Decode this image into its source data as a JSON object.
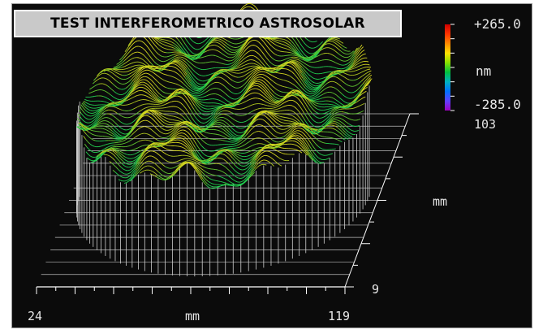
{
  "chart_data": {
    "type": "surface-3d",
    "title": "TEST INTERFEROMETRICO ASTROSOLAR",
    "colorbar": {
      "max_label": "+265.0",
      "min_label": "-285.0",
      "unit": "nm",
      "colors": [
        "#cc0000",
        "#ff3300",
        "#ff8800",
        "#ffe000",
        "#88e000",
        "#00c040",
        "#00b0c0",
        "#0070ff",
        "#6040ff",
        "#a000c0"
      ]
    },
    "x_axis": {
      "min_label": "24",
      "max_label": "119",
      "unit": "mm",
      "range": [
        24,
        119
      ]
    },
    "y_axis": {
      "min_label": "9",
      "max_label": "103",
      "unit": "mm",
      "range": [
        9,
        103
      ]
    },
    "z_range_nm": [
      -285.0,
      265.0
    ],
    "background": "#0b0b0b",
    "wire_colors": [
      "#d8d820",
      "#b0c820",
      "#60c830",
      "#22d050"
    ]
  }
}
